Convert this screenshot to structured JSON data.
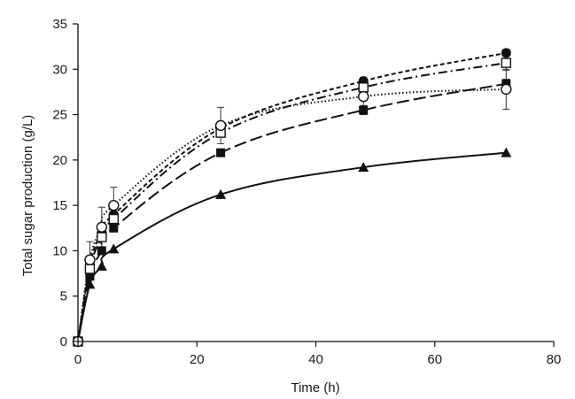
{
  "chart_data": {
    "type": "line",
    "title": "",
    "xlabel": "Time (h)",
    "ylabel": "Total sugar production (g/L)",
    "xlim": [
      0,
      80
    ],
    "ylim": [
      0,
      35
    ],
    "xticks": [
      0,
      20,
      40,
      60,
      80
    ],
    "yticks": [
      0,
      5,
      10,
      15,
      20,
      25,
      30,
      35
    ],
    "grid": false,
    "legend": "none",
    "series": [
      {
        "name": "filled-circle",
        "marker": "filled-circle",
        "line_style": "short-dash",
        "x": [
          0,
          2,
          4,
          6,
          24,
          48,
          72
        ],
        "y": [
          0,
          8.5,
          12.0,
          14.0,
          23.5,
          28.7,
          31.8
        ],
        "error": [
          0,
          0,
          0,
          0,
          0,
          0.4,
          0.4
        ],
        "color": "#111111"
      },
      {
        "name": "open-square",
        "marker": "open-square",
        "line_style": "dash-dot",
        "x": [
          0,
          2,
          4,
          6,
          24,
          48,
          72
        ],
        "y": [
          0,
          8.0,
          11.5,
          13.5,
          23.0,
          28.0,
          30.7
        ],
        "error": [
          0,
          0,
          0,
          0,
          0,
          0.8,
          0.8
        ],
        "color": "#111111"
      },
      {
        "name": "open-circle",
        "marker": "open-circle",
        "line_style": "dotted",
        "x": [
          0,
          2,
          4,
          6,
          24,
          48,
          72
        ],
        "y": [
          0,
          9.0,
          12.6,
          15.0,
          23.8,
          27.0,
          27.8
        ],
        "error": [
          0,
          2.0,
          2.2,
          2.0,
          2.0,
          1.2,
          2.2
        ],
        "color": "#111111"
      },
      {
        "name": "filled-square",
        "marker": "filled-square",
        "line_style": "long-dash",
        "x": [
          0,
          2,
          4,
          6,
          24,
          48,
          72
        ],
        "y": [
          0,
          7.2,
          10.0,
          12.5,
          20.8,
          25.5,
          28.4
        ],
        "error": [
          0,
          0,
          0,
          0,
          0,
          0.5,
          0.5
        ],
        "color": "#111111"
      },
      {
        "name": "filled-triangle",
        "marker": "filled-triangle",
        "line_style": "solid",
        "x": [
          0,
          2,
          4,
          6,
          24,
          48,
          72
        ],
        "y": [
          0,
          6.3,
          8.3,
          10.2,
          16.2,
          19.2,
          20.8
        ],
        "error": [
          0,
          0,
          0,
          0,
          0,
          0,
          0
        ],
        "color": "#111111"
      }
    ]
  }
}
